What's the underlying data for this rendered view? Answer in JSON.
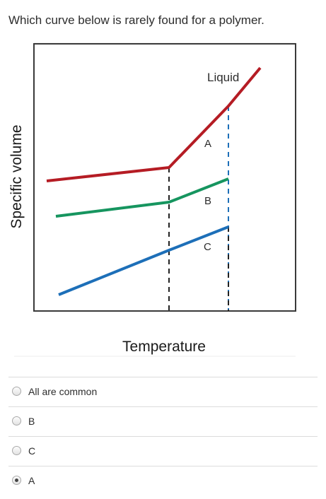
{
  "question": {
    "text": "Which curve below is rarely found for a polymer."
  },
  "figure": {
    "ylabel": "Specific volume",
    "xlabel": "Temperature",
    "curve_labels": {
      "liquid": "Liquid",
      "a": "A",
      "b": "B",
      "c": "C"
    },
    "colors": {
      "curve_a": "#b51c24",
      "curve_b": "#16955f",
      "curve_c": "#1d6fb8",
      "axes": "#2d2d2d"
    }
  },
  "options": [
    {
      "label": "All are common",
      "selected": false
    },
    {
      "label": "B",
      "selected": false
    },
    {
      "label": "C",
      "selected": false
    },
    {
      "label": "A",
      "selected": true
    }
  ]
}
